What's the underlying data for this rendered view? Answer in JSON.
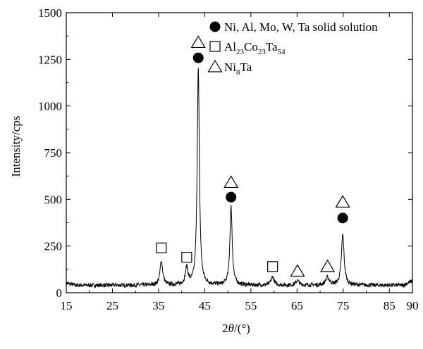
{
  "chart_data": {
    "type": "line",
    "title": "",
    "xlabel_parts": [
      "2",
      "θ",
      "/(°)"
    ],
    "ylabel": "Intensity/cps",
    "xlim": [
      15,
      90
    ],
    "ylim": [
      0,
      1500
    ],
    "xticks": [
      "15",
      "25",
      "35",
      "45",
      "55",
      "65",
      "75",
      "85",
      "90"
    ],
    "yticks": [
      "0",
      "250",
      "500",
      "750",
      "1000",
      "1250",
      "1500"
    ],
    "grid": false,
    "legend_position": "top-right",
    "legend": [
      {
        "marker": "circle",
        "parts": [
          [
            "Ni, Al, Mo, W, Ta solid solution",
            ""
          ]
        ]
      },
      {
        "marker": "square",
        "parts": [
          [
            "Al",
            ""
          ],
          [
            "23",
            "sub"
          ],
          [
            "Co",
            ""
          ],
          [
            "23",
            "sub"
          ],
          [
            "Ta",
            ""
          ],
          [
            "54",
            "sub"
          ]
        ]
      },
      {
        "marker": "triangle",
        "parts": [
          [
            "Ni",
            ""
          ],
          [
            "8",
            "sub"
          ],
          [
            "Ta",
            ""
          ]
        ]
      }
    ],
    "series": [
      {
        "baseline": 40,
        "peaks": [
          {
            "x": 35.6,
            "height": 130,
            "width": 0.35
          },
          {
            "x": 41.1,
            "height": 90,
            "width": 0.35
          },
          {
            "x": 43.6,
            "height": 1160,
            "width": 0.28
          },
          {
            "x": 50.7,
            "height": 420,
            "width": 0.3
          },
          {
            "x": 59.7,
            "height": 45,
            "width": 0.4
          },
          {
            "x": 65.1,
            "height": 25,
            "width": 0.4
          },
          {
            "x": 71.6,
            "height": 40,
            "width": 0.5
          },
          {
            "x": 74.9,
            "height": 270,
            "width": 0.35
          }
        ]
      }
    ],
    "annotations": [
      {
        "marker": "square",
        "x": 35.6,
        "y": 240
      },
      {
        "marker": "square",
        "x": 41.1,
        "y": 190
      },
      {
        "marker": "circle",
        "x": 43.6,
        "y": 1258
      },
      {
        "marker": "triangle",
        "x": 43.6,
        "y": 1340
      },
      {
        "marker": "circle",
        "x": 50.7,
        "y": 512
      },
      {
        "marker": "triangle",
        "x": 50.7,
        "y": 590
      },
      {
        "marker": "square",
        "x": 59.7,
        "y": 140
      },
      {
        "marker": "triangle",
        "x": 65.1,
        "y": 115
      },
      {
        "marker": "triangle",
        "x": 71.6,
        "y": 140
      },
      {
        "marker": "circle",
        "x": 74.9,
        "y": 400
      },
      {
        "marker": "triangle",
        "x": 74.9,
        "y": 485
      }
    ]
  }
}
